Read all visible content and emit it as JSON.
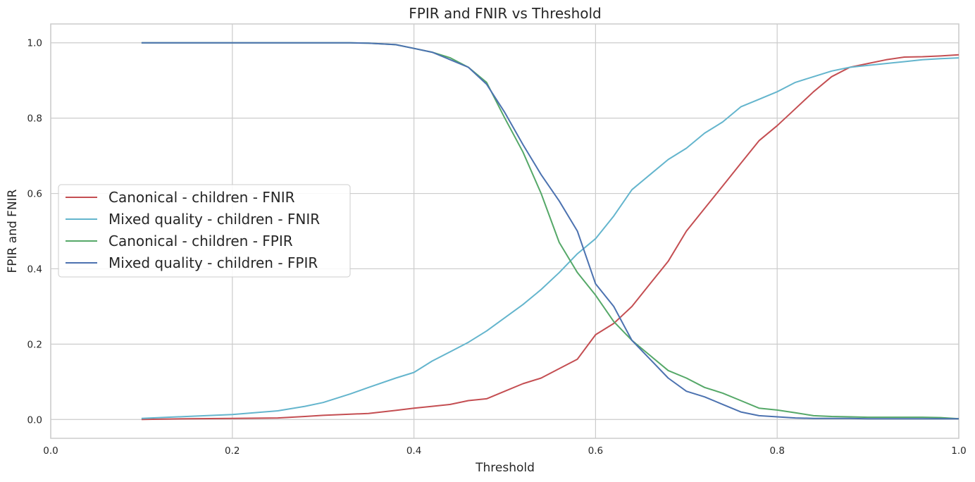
{
  "chart_data": {
    "type": "line",
    "title": "FPIR and FNIR vs Threshold",
    "xlabel": "Threshold",
    "ylabel": "FPIR and FNIR",
    "xlim": [
      0.0,
      1.0
    ],
    "ylim": [
      -0.05,
      1.05
    ],
    "xticks": [
      "0.0",
      "0.2",
      "0.4",
      "0.6",
      "0.8",
      "1.0"
    ],
    "yticks": [
      "0.0",
      "0.2",
      "0.4",
      "0.6",
      "0.8",
      "1.0"
    ],
    "grid": true,
    "legend_position": "center-left",
    "x": [
      0.1,
      0.15,
      0.2,
      0.25,
      0.28,
      0.3,
      0.33,
      0.35,
      0.38,
      0.4,
      0.42,
      0.44,
      0.46,
      0.48,
      0.5,
      0.52,
      0.54,
      0.56,
      0.58,
      0.6,
      0.62,
      0.64,
      0.66,
      0.68,
      0.7,
      0.72,
      0.74,
      0.76,
      0.78,
      0.8,
      0.82,
      0.84,
      0.86,
      0.88,
      0.9,
      0.92,
      0.94,
      0.96,
      0.98,
      1.0
    ],
    "series": [
      {
        "name": "Canonical - children - FNIR",
        "color": "#c44e52",
        "values": [
          0.0,
          0.002,
          0.003,
          0.004,
          0.008,
          0.011,
          0.014,
          0.016,
          0.024,
          0.03,
          0.035,
          0.04,
          0.05,
          0.055,
          0.075,
          0.095,
          0.11,
          0.135,
          0.16,
          0.225,
          0.255,
          0.3,
          0.36,
          0.42,
          0.5,
          0.56,
          0.62,
          0.68,
          0.74,
          0.78,
          0.825,
          0.87,
          0.91,
          0.935,
          0.945,
          0.955,
          0.962,
          0.963,
          0.965,
          0.968
        ]
      },
      {
        "name": "Mixed quality - children - FNIR",
        "color": "#64b5cd",
        "values": [
          0.003,
          0.008,
          0.013,
          0.023,
          0.035,
          0.045,
          0.068,
          0.085,
          0.11,
          0.125,
          0.155,
          0.18,
          0.205,
          0.235,
          0.27,
          0.305,
          0.345,
          0.39,
          0.44,
          0.48,
          0.54,
          0.61,
          0.65,
          0.69,
          0.72,
          0.76,
          0.79,
          0.83,
          0.85,
          0.87,
          0.895,
          0.91,
          0.925,
          0.935,
          0.94,
          0.945,
          0.95,
          0.955,
          0.958,
          0.96
        ]
      },
      {
        "name": "Canonical - children - FPIR",
        "color": "#55a868",
        "values": [
          1.0,
          1.0,
          1.0,
          1.0,
          1.0,
          1.0,
          1.0,
          0.999,
          0.995,
          0.985,
          0.975,
          0.96,
          0.935,
          0.895,
          0.8,
          0.71,
          0.6,
          0.47,
          0.39,
          0.33,
          0.26,
          0.21,
          0.17,
          0.13,
          0.11,
          0.085,
          0.07,
          0.05,
          0.03,
          0.025,
          0.018,
          0.01,
          0.008,
          0.007,
          0.006,
          0.006,
          0.006,
          0.006,
          0.005,
          0.002
        ]
      },
      {
        "name": "Mixed quality - children - FPIR",
        "color": "#4c72b0",
        "values": [
          1.0,
          1.0,
          1.0,
          1.0,
          1.0,
          1.0,
          1.0,
          0.999,
          0.995,
          0.985,
          0.975,
          0.955,
          0.935,
          0.89,
          0.815,
          0.73,
          0.65,
          0.58,
          0.5,
          0.36,
          0.3,
          0.21,
          0.16,
          0.11,
          0.075,
          0.06,
          0.04,
          0.02,
          0.01,
          0.007,
          0.004,
          0.003,
          0.003,
          0.003,
          0.002,
          0.002,
          0.002,
          0.002,
          0.002,
          0.002
        ]
      }
    ]
  }
}
